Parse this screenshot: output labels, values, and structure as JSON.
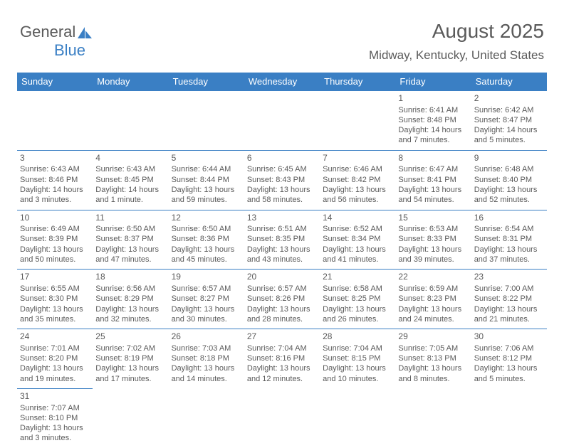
{
  "logo": {
    "part1": "General",
    "part2": "Blue"
  },
  "title": "August 2025",
  "subtitle": "Midway, Kentucky, United States",
  "header_bg": "#3a7fc4",
  "weekdays": [
    "Sunday",
    "Monday",
    "Tuesday",
    "Wednesday",
    "Thursday",
    "Friday",
    "Saturday"
  ],
  "weeks": [
    [
      null,
      null,
      null,
      null,
      null,
      {
        "d": "1",
        "r": "6:41 AM",
        "s": "8:48 PM",
        "dl": "14 hours and 7 minutes."
      },
      {
        "d": "2",
        "r": "6:42 AM",
        "s": "8:47 PM",
        "dl": "14 hours and 5 minutes."
      }
    ],
    [
      {
        "d": "3",
        "r": "6:43 AM",
        "s": "8:46 PM",
        "dl": "14 hours and 3 minutes."
      },
      {
        "d": "4",
        "r": "6:43 AM",
        "s": "8:45 PM",
        "dl": "14 hours and 1 minute."
      },
      {
        "d": "5",
        "r": "6:44 AM",
        "s": "8:44 PM",
        "dl": "13 hours and 59 minutes."
      },
      {
        "d": "6",
        "r": "6:45 AM",
        "s": "8:43 PM",
        "dl": "13 hours and 58 minutes."
      },
      {
        "d": "7",
        "r": "6:46 AM",
        "s": "8:42 PM",
        "dl": "13 hours and 56 minutes."
      },
      {
        "d": "8",
        "r": "6:47 AM",
        "s": "8:41 PM",
        "dl": "13 hours and 54 minutes."
      },
      {
        "d": "9",
        "r": "6:48 AM",
        "s": "8:40 PM",
        "dl": "13 hours and 52 minutes."
      }
    ],
    [
      {
        "d": "10",
        "r": "6:49 AM",
        "s": "8:39 PM",
        "dl": "13 hours and 50 minutes."
      },
      {
        "d": "11",
        "r": "6:50 AM",
        "s": "8:37 PM",
        "dl": "13 hours and 47 minutes."
      },
      {
        "d": "12",
        "r": "6:50 AM",
        "s": "8:36 PM",
        "dl": "13 hours and 45 minutes."
      },
      {
        "d": "13",
        "r": "6:51 AM",
        "s": "8:35 PM",
        "dl": "13 hours and 43 minutes."
      },
      {
        "d": "14",
        "r": "6:52 AM",
        "s": "8:34 PM",
        "dl": "13 hours and 41 minutes."
      },
      {
        "d": "15",
        "r": "6:53 AM",
        "s": "8:33 PM",
        "dl": "13 hours and 39 minutes."
      },
      {
        "d": "16",
        "r": "6:54 AM",
        "s": "8:31 PM",
        "dl": "13 hours and 37 minutes."
      }
    ],
    [
      {
        "d": "17",
        "r": "6:55 AM",
        "s": "8:30 PM",
        "dl": "13 hours and 35 minutes."
      },
      {
        "d": "18",
        "r": "6:56 AM",
        "s": "8:29 PM",
        "dl": "13 hours and 32 minutes."
      },
      {
        "d": "19",
        "r": "6:57 AM",
        "s": "8:27 PM",
        "dl": "13 hours and 30 minutes."
      },
      {
        "d": "20",
        "r": "6:57 AM",
        "s": "8:26 PM",
        "dl": "13 hours and 28 minutes."
      },
      {
        "d": "21",
        "r": "6:58 AM",
        "s": "8:25 PM",
        "dl": "13 hours and 26 minutes."
      },
      {
        "d": "22",
        "r": "6:59 AM",
        "s": "8:23 PM",
        "dl": "13 hours and 24 minutes."
      },
      {
        "d": "23",
        "r": "7:00 AM",
        "s": "8:22 PM",
        "dl": "13 hours and 21 minutes."
      }
    ],
    [
      {
        "d": "24",
        "r": "7:01 AM",
        "s": "8:20 PM",
        "dl": "13 hours and 19 minutes."
      },
      {
        "d": "25",
        "r": "7:02 AM",
        "s": "8:19 PM",
        "dl": "13 hours and 17 minutes."
      },
      {
        "d": "26",
        "r": "7:03 AM",
        "s": "8:18 PM",
        "dl": "13 hours and 14 minutes."
      },
      {
        "d": "27",
        "r": "7:04 AM",
        "s": "8:16 PM",
        "dl": "13 hours and 12 minutes."
      },
      {
        "d": "28",
        "r": "7:04 AM",
        "s": "8:15 PM",
        "dl": "13 hours and 10 minutes."
      },
      {
        "d": "29",
        "r": "7:05 AM",
        "s": "8:13 PM",
        "dl": "13 hours and 8 minutes."
      },
      {
        "d": "30",
        "r": "7:06 AM",
        "s": "8:12 PM",
        "dl": "13 hours and 5 minutes."
      }
    ],
    [
      {
        "d": "31",
        "r": "7:07 AM",
        "s": "8:10 PM",
        "dl": "13 hours and 3 minutes."
      },
      null,
      null,
      null,
      null,
      null,
      null
    ]
  ],
  "labels": {
    "sunrise": "Sunrise: ",
    "sunset": "Sunset: ",
    "daylight": "Daylight: "
  }
}
